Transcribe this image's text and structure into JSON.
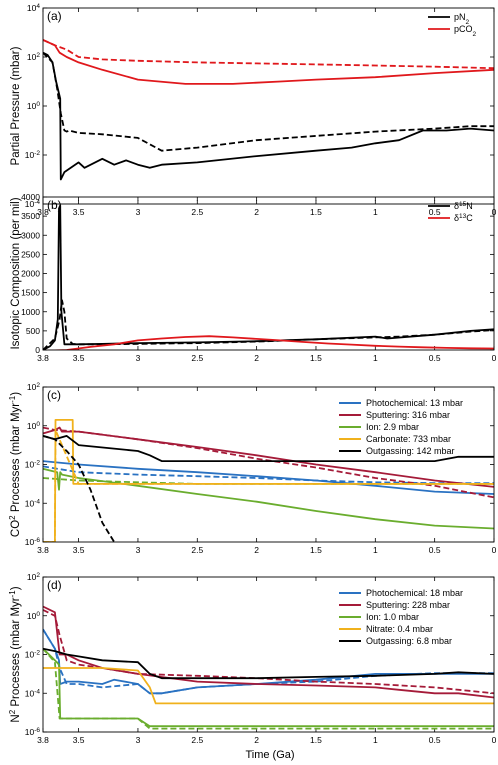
{
  "figure": {
    "xlabel": "Time (Ga)"
  },
  "chart_data": [
    {
      "panel": "(a)",
      "type": "line",
      "ylabel_parts": [
        "Partial Pressure (mbar)"
      ],
      "yscale": "log",
      "ylim": [
        0.0001,
        10000
      ],
      "yticks": [
        "10^-4",
        "10^-2",
        "10^0",
        "10^2",
        "10^4"
      ],
      "xlim": [
        3.8,
        0
      ],
      "xticks": [
        "3.8",
        "3.5",
        "3",
        "2.5",
        "2",
        "1.5",
        "1",
        "0.5",
        "0"
      ],
      "legend": {
        "placement": "top-right",
        "labels": [
          [
            "pN",
            "2",
            ""
          ],
          [
            "pCO",
            "2",
            ""
          ]
        ]
      },
      "series": [
        {
          "color": "#000000",
          "dash": false,
          "x": [
            3.8,
            3.76,
            3.72,
            3.69,
            3.655,
            3.65,
            3.62,
            3.5,
            3.45,
            3.3,
            3.2,
            3.1,
            3.0,
            2.9,
            2.8,
            2.5,
            2.0,
            1.5,
            1.2,
            1.0,
            0.8,
            0.6,
            0.4,
            0.2,
            0
          ],
          "y": [
            150,
            120,
            60,
            10,
            2,
            0.001,
            0.002,
            0.005,
            0.003,
            0.007,
            0.004,
            0.006,
            0.004,
            0.003,
            0.004,
            0.005,
            0.009,
            0.015,
            0.02,
            0.03,
            0.04,
            0.1,
            0.1,
            0.12,
            0.1
          ]
        },
        {
          "color": "#000000",
          "dash": true,
          "x": [
            3.8,
            3.72,
            3.68,
            3.65,
            3.62,
            3.6,
            3.58,
            3.5,
            3.3,
            3.0,
            2.8,
            2.5,
            2.0,
            1.5,
            1.0,
            0.5,
            0.2,
            0
          ],
          "y": [
            150,
            60,
            5,
            0.5,
            0.1,
            0.09,
            0.1,
            0.08,
            0.07,
            0.05,
            0.015,
            0.02,
            0.04,
            0.06,
            0.09,
            0.12,
            0.15,
            0.15
          ]
        },
        {
          "color": "#e0181c",
          "dash": false,
          "x": [
            3.8,
            3.7,
            3.66,
            3.6,
            3.5,
            3.3,
            3.0,
            2.6,
            2.2,
            1.8,
            1.5,
            1.0,
            0.5,
            0
          ],
          "y": [
            500,
            300,
            150,
            100,
            60,
            30,
            12,
            8,
            8,
            10,
            12,
            15,
            22,
            30
          ]
        },
        {
          "color": "#e0181c",
          "dash": true,
          "x": [
            3.8,
            3.7,
            3.6,
            3.5,
            3.3,
            3.0,
            2.5,
            2.0,
            1.5,
            1.0,
            0.5,
            0
          ],
          "y": [
            500,
            300,
            200,
            100,
            80,
            70,
            60,
            55,
            50,
            45,
            40,
            35
          ]
        }
      ]
    },
    {
      "panel": "(b)",
      "type": "line",
      "ylabel_parts": [
        "Isotopic Composition (per mil)"
      ],
      "yscale": "linear",
      "ylim": [
        0,
        4000
      ],
      "yticks": [
        "0",
        "500",
        "1000",
        "1500",
        "2000",
        "2500",
        "3000",
        "3500",
        "4000"
      ],
      "xlim": [
        3.8,
        0
      ],
      "xticks": [
        "3.8",
        "3.5",
        "3",
        "2.5",
        "2",
        "1.5",
        "1",
        "0.5",
        "0"
      ],
      "legend": {
        "placement": "top-right",
        "labels": [
          [
            "δ",
            "15",
            "N"
          ],
          [
            "δ",
            "13",
            "C"
          ]
        ]
      },
      "series": [
        {
          "color": "#000000",
          "dash": false,
          "x": [
            3.8,
            3.74,
            3.7,
            3.675,
            3.665,
            3.655,
            3.645,
            3.62,
            3.5,
            3.3,
            3.0,
            2.5,
            2.0,
            1.5,
            1.0,
            0.9,
            0.5,
            0.2,
            0
          ],
          "y": [
            0,
            100,
            250,
            800,
            3700,
            3780,
            1000,
            150,
            150,
            160,
            180,
            200,
            230,
            280,
            350,
            300,
            400,
            500,
            540
          ]
        },
        {
          "color": "#000000",
          "dash": true,
          "x": [
            3.8,
            3.7,
            3.66,
            3.64,
            3.62,
            3.6,
            3.55,
            3.5,
            3.3,
            3.0,
            2.5,
            2.0,
            1.5,
            1.0,
            0.8,
            0.5,
            0.2,
            0
          ],
          "y": [
            0,
            300,
            800,
            1300,
            1000,
            300,
            160,
            150,
            150,
            160,
            180,
            220,
            280,
            330,
            350,
            400,
            480,
            520
          ]
        },
        {
          "color": "#e0181c",
          "dash": false,
          "x": [
            3.8,
            3.6,
            3.4,
            3.2,
            3.0,
            2.8,
            2.6,
            2.4,
            2.2,
            2.0,
            1.8,
            1.6,
            1.4,
            1.2,
            1.0,
            0.8,
            0.6,
            0.4,
            0.2,
            0
          ],
          "y": [
            -20,
            0,
            80,
            150,
            250,
            300,
            340,
            360,
            330,
            290,
            250,
            210,
            170,
            140,
            110,
            90,
            70,
            55,
            45,
            40
          ]
        }
      ]
    },
    {
      "panel": "(c)",
      "type": "line",
      "ylabel_parts": [
        "CO",
        "2",
        " Processes (mbar Myr",
        "-1",
        ")"
      ],
      "yscale": "log",
      "ylim": [
        1e-06,
        100
      ],
      "yticks": [
        "10^-6",
        "10^-4",
        "10^-2",
        "10^0",
        "10^2"
      ],
      "xlim": [
        3.8,
        0
      ],
      "xticks": [
        "3.8",
        "3.5",
        "3",
        "2.5",
        "2",
        "1.5",
        "1",
        "0.5",
        "0"
      ],
      "legend": {
        "placement": "top-right",
        "labels": [
          [
            "Photochemical: 13 mbar"
          ],
          [
            "Sputtering: 316 mbar"
          ],
          [
            "Ion: 2.9 mbar"
          ],
          [
            "Carbonate: 733 mbar"
          ],
          [
            "Outgassing: 142 mbar"
          ]
        ]
      },
      "series": [
        {
          "color": "#2a72c2",
          "dash": false,
          "x": [
            3.8,
            3.5,
            3.0,
            2.5,
            2.0,
            1.5,
            1.0,
            0.5,
            0
          ],
          "y": [
            0.015,
            0.01,
            0.006,
            0.004,
            0.0025,
            0.0015,
            0.0008,
            0.0004,
            0.0003
          ]
        },
        {
          "color": "#2a72c2",
          "dash": true,
          "x": [
            3.8,
            3.6,
            3.5,
            3.0,
            2.5,
            2.0,
            1.5,
            1.0,
            0.5,
            0
          ],
          "y": [
            0.008,
            0.005,
            0.004,
            0.003,
            0.0025,
            0.002,
            0.0015,
            0.0012,
            0.0011,
            0.0011
          ]
        },
        {
          "color": "#a51b39",
          "dash": false,
          "x": [
            3.8,
            3.7,
            3.66,
            3.64,
            3.5,
            3.0,
            2.5,
            2.0,
            1.5,
            1.0,
            0.5,
            0
          ],
          "y": [
            0.4,
            0.6,
            0.8,
            0.5,
            0.5,
            0.2,
            0.08,
            0.03,
            0.01,
            0.004,
            0.0015,
            0.0007
          ]
        },
        {
          "color": "#a51b39",
          "dash": true,
          "x": [
            3.8,
            3.7,
            3.5,
            3.0,
            2.5,
            2.0,
            1.5,
            1.0,
            0.5,
            0
          ],
          "y": [
            0.8,
            0.6,
            0.5,
            0.2,
            0.07,
            0.02,
            0.007,
            0.002,
            0.0008,
            0.0002
          ]
        },
        {
          "color": "#6aad2e",
          "dash": false,
          "x": [
            3.8,
            3.68,
            3.665,
            3.655,
            3.64,
            3.5,
            3.0,
            2.5,
            2.0,
            1.5,
            1.0,
            0.5,
            0
          ],
          "y": [
            0.006,
            0.004,
            0.0005,
            0.004,
            0.003,
            0.002,
            0.0008,
            0.0003,
            0.00012,
            4e-05,
            1.5e-05,
            7e-06,
            5e-06
          ]
        },
        {
          "color": "#6aad2e",
          "dash": true,
          "x": [
            3.8,
            3.5,
            3.0,
            2.5,
            2.0,
            1.5,
            1.0,
            0.5,
            0
          ],
          "y": [
            0.002,
            0.0015,
            0.0012,
            0.001,
            0.001,
            0.001,
            0.001,
            0.001,
            0.001
          ]
        },
        {
          "color": "#f0b11c",
          "dash": false,
          "x": [
            3.8,
            3.7,
            3.695,
            3.55,
            3.545,
            3.5,
            3.0,
            2.0,
            1.0,
            0
          ],
          "y": [
            1e-06,
            1e-06,
            2,
            2,
            0.001,
            0.001,
            0.001,
            0.001,
            0.001,
            0.001
          ]
        },
        {
          "color": "#f0b11c",
          "dash": true,
          "x": [
            3.8,
            3.7,
            3.695,
            3.5,
            3.0,
            2.0,
            1.0,
            0
          ],
          "y": [
            1e-06,
            1e-06,
            0.6,
            0.001,
            0.001,
            0.001,
            0.001,
            0.001
          ]
        },
        {
          "color": "#000000",
          "dash": false,
          "x": [
            3.8,
            3.7,
            3.6,
            3.5,
            3.0,
            2.9,
            2.8,
            2.0,
            1.0,
            0.5,
            0.3,
            0
          ],
          "y": [
            0.3,
            0.2,
            0.3,
            0.1,
            0.05,
            0.03,
            0.015,
            0.015,
            0.015,
            0.015,
            0.025,
            0.025
          ]
        },
        {
          "color": "#000000",
          "dash": true,
          "x": [
            3.8,
            3.7,
            3.6,
            3.5,
            3.4,
            3.3,
            3.2
          ],
          "y": [
            0.3,
            0.2,
            0.05,
            0.01,
            0.0005,
            1e-05,
            1e-06
          ]
        }
      ]
    },
    {
      "panel": "(d)",
      "type": "line",
      "ylabel_parts": [
        "N",
        "2",
        " Processes (mbar Myr",
        "-1",
        ")"
      ],
      "yscale": "log",
      "ylim": [
        1e-06,
        100
      ],
      "yticks": [
        "10^-6",
        "10^-4",
        "10^-2",
        "10^0",
        "10^2"
      ],
      "xlim": [
        3.8,
        0
      ],
      "xticks": [
        "3.8",
        "3.5",
        "3",
        "2.5",
        "2",
        "1.5",
        "1",
        "0.5",
        "0"
      ],
      "legend": {
        "placement": "top-right",
        "labels": [
          [
            "Photochemical: 18 mbar"
          ],
          [
            "Sputtering: 228 mbar"
          ],
          [
            "Ion: 1.0 mbar"
          ],
          [
            "Nitrate: 0.4 mbar"
          ],
          [
            "Outgassing: 6.8 mbar"
          ]
        ]
      },
      "series": [
        {
          "color": "#2a72c2",
          "dash": false,
          "x": [
            3.8,
            3.7,
            3.665,
            3.655,
            3.6,
            3.5,
            3.3,
            3.2,
            3.0,
            2.9,
            2.8,
            2.5,
            2.0,
            1.5,
            1.0,
            0.5,
            0
          ],
          "y": [
            0.2,
            0.02,
            0.005,
            0.0003,
            0.0004,
            0.0004,
            0.0003,
            0.0005,
            0.0003,
            0.0001,
            0.0001,
            0.0002,
            0.0003,
            0.0005,
            0.001,
            0.001,
            0.001
          ]
        },
        {
          "color": "#2a72c2",
          "dash": true,
          "x": [
            3.8,
            3.7,
            3.66,
            3.6,
            3.5,
            3.3,
            3.0,
            2.9,
            2.8,
            2.5,
            2.0,
            1.5,
            1.0,
            0.5,
            0
          ],
          "y": [
            0.2,
            0.02,
            0.002,
            0.0003,
            0.0003,
            0.0002,
            0.0003,
            0.0001,
            0.0001,
            0.0002,
            0.0003,
            0.0004,
            0.0008,
            0.0011,
            0.0011
          ]
        },
        {
          "color": "#a51b39",
          "dash": false,
          "x": [
            3.8,
            3.7,
            3.66,
            3.64,
            3.6,
            3.5,
            3.3,
            3.0,
            2.5,
            2.0,
            1.5,
            1.0,
            0.8,
            0.5,
            0.3,
            0
          ],
          "y": [
            3,
            1.5,
            0.01,
            0.01,
            0.01,
            0.005,
            0.002,
            0.001,
            0.0004,
            0.0003,
            0.00025,
            0.0002,
            0.00015,
            0.0001,
            0.0001,
            6e-05
          ]
        },
        {
          "color": "#a51b39",
          "dash": true,
          "x": [
            3.8,
            3.7,
            3.66,
            3.6,
            3.5,
            3.3,
            3.0,
            2.5,
            2.0,
            1.5,
            1.0,
            0.5,
            0
          ],
          "y": [
            2,
            1,
            0.1,
            0.005,
            0.003,
            0.002,
            0.001,
            0.0008,
            0.0006,
            0.0004,
            0.0003,
            0.0002,
            0.0001
          ]
        },
        {
          "color": "#6aad2e",
          "dash": false,
          "x": [
            3.8,
            3.7,
            3.665,
            3.655,
            3.5,
            3.0,
            2.9,
            2.8,
            2.5,
            2.0,
            1.0,
            0.5,
            0
          ],
          "y": [
            0.02,
            0.005,
            0.003,
            5e-06,
            5e-06,
            5e-06,
            2e-06,
            2e-06,
            2e-06,
            2e-06,
            2e-06,
            2e-06,
            2e-06
          ]
        },
        {
          "color": "#6aad2e",
          "dash": true,
          "x": [
            3.8,
            3.7,
            3.66,
            3.5,
            3.0,
            2.9,
            2.8,
            2.5,
            2.0,
            1.0,
            0.5,
            0
          ],
          "y": [
            0.02,
            0.004,
            5e-06,
            5e-06,
            5e-06,
            1.5e-06,
            1.5e-06,
            1.5e-06,
            1.5e-06,
            1.5e-06,
            1.5e-06,
            1.5e-06
          ]
        },
        {
          "color": "#f0b11c",
          "dash": false,
          "x": [
            3.8,
            3.5,
            3.3,
            3.0,
            2.9,
            2.85,
            2.0,
            1.0,
            0.5,
            0
          ],
          "y": [
            0.002,
            0.002,
            0.002,
            0.0015,
            0.0002,
            3e-05,
            3e-05,
            3e-05,
            3e-05,
            3e-05
          ]
        },
        {
          "color": "#000000",
          "dash": false,
          "x": [
            3.8,
            3.7,
            3.6,
            3.5,
            3.3,
            3.0,
            2.9,
            2.8,
            2.5,
            2.0,
            1.5,
            1.0,
            0.5,
            0.3,
            0
          ],
          "y": [
            0.02,
            0.015,
            0.01,
            0.008,
            0.005,
            0.004,
            0.001,
            0.0006,
            0.0006,
            0.0006,
            0.0007,
            0.0008,
            0.001,
            0.0012,
            0.001
          ]
        }
      ]
    }
  ]
}
